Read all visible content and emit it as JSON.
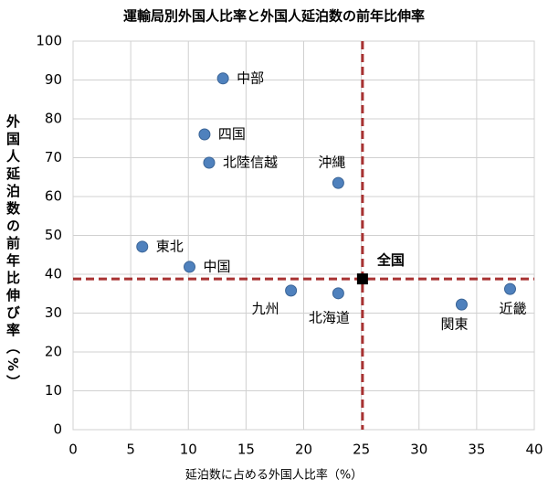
{
  "chart_data": {
    "type": "scatter",
    "title": "運輸局別外国人比率と外国人延泊数の前年比伸率",
    "x_label": "延泊数に占める外国人比率（%）",
    "y_label": "外国人延泊数の前年比伸び率（%）",
    "x": [
      13.0,
      11.4,
      11.8,
      23.0,
      6.0,
      10.1,
      18.9,
      23.0,
      33.7,
      37.9
    ],
    "series": [
      {
        "color": "#4f81bd",
        "values": [
          90.4,
          76.0,
          68.7,
          63.5,
          47.1,
          41.9,
          35.8,
          35.1,
          32.2,
          36.2
        ]
      }
    ],
    "point_labels": [
      "中部",
      "四国",
      "北陸信越",
      "沖縄",
      "東北",
      "中国",
      "九州",
      "北海道",
      "関東",
      "近畿"
    ],
    "highlight": {
      "label": "全国",
      "x": 25.1,
      "y": 38.8,
      "color": "#000000",
      "line_color": "#a83232"
    },
    "xlim": [
      0,
      40
    ],
    "xticks": [
      0,
      5,
      10,
      15,
      20,
      25,
      30,
      35,
      40
    ],
    "ylim": [
      0,
      100
    ],
    "yticks": [
      0,
      10,
      20,
      30,
      40,
      50,
      60,
      70,
      80,
      90,
      100
    ],
    "grid": true
  }
}
